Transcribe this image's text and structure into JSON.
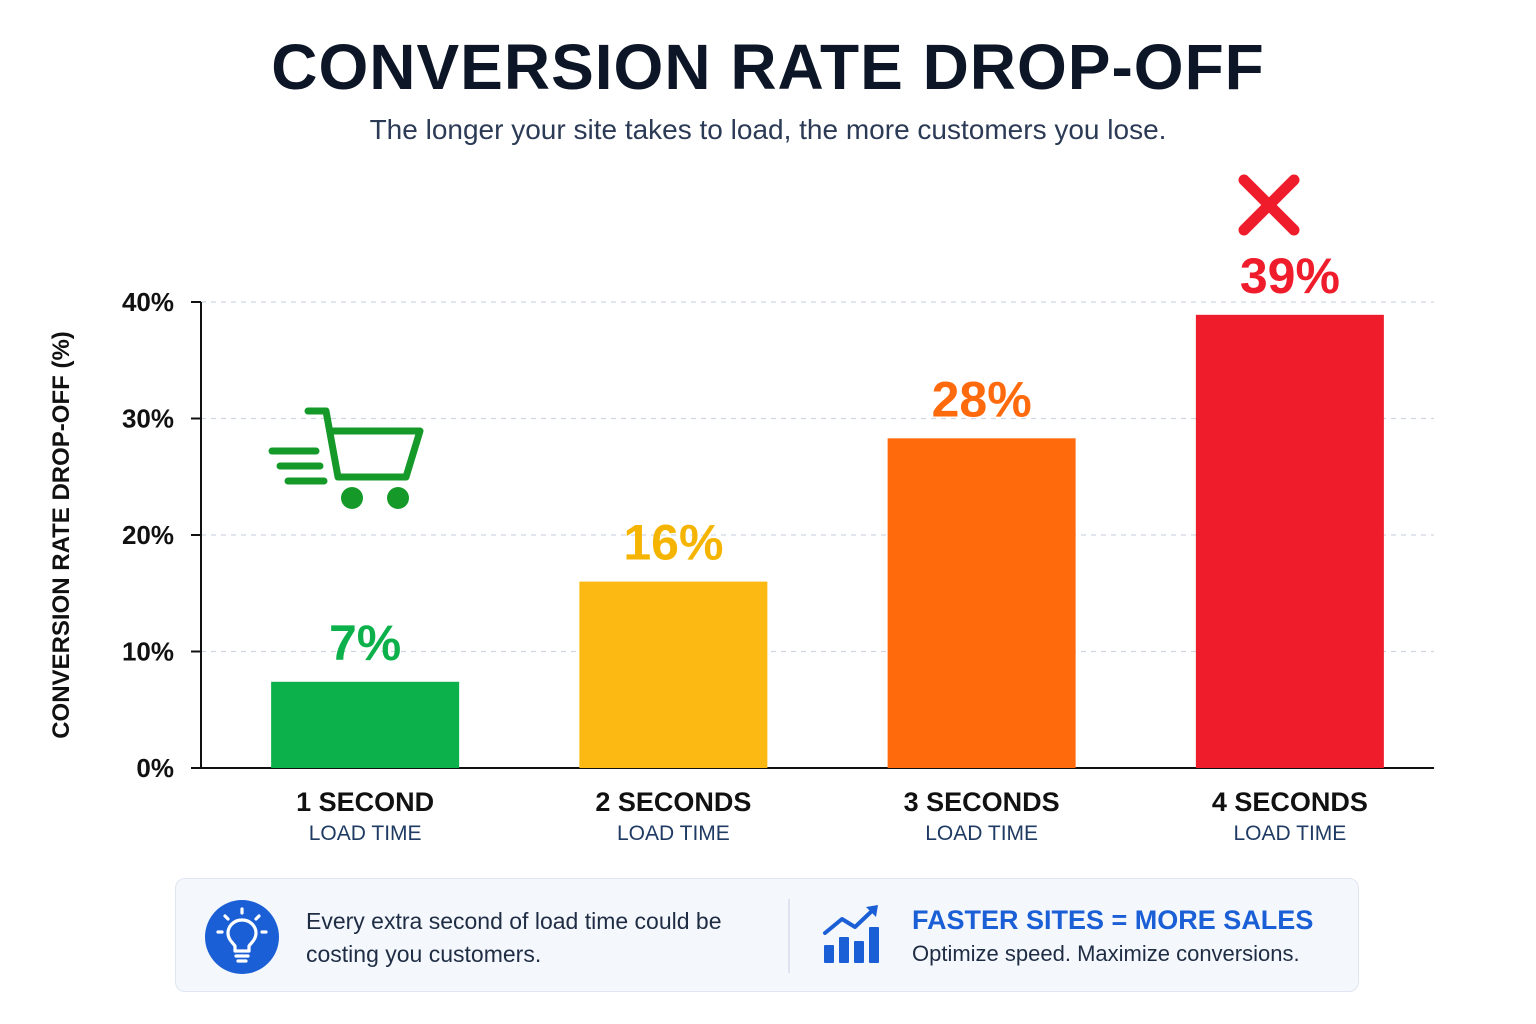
{
  "header": {
    "title": "CONVERSION RATE DROP-OFF",
    "subtitle": "The longer your site takes to load, the more customers you lose."
  },
  "chart_data": {
    "type": "bar",
    "categories": [
      "1 SECOND",
      "2 SECONDS",
      "3 SECONDS",
      "4 SECONDS"
    ],
    "category_sublabels": [
      "LOAD TIME",
      "LOAD TIME",
      "LOAD TIME",
      "LOAD TIME"
    ],
    "values": [
      7.4,
      16,
      28.3,
      38.9
    ],
    "data_labels": [
      "7%",
      "16%",
      "28%",
      "39%"
    ],
    "bar_colors": [
      "#0db14b",
      "#fdb913",
      "#ff6a0d",
      "#ef1c2c"
    ],
    "ylabel": "CONVERSION RATE DROP-OFF (%)",
    "ylim": [
      0,
      40
    ],
    "yticks": [
      0,
      10,
      20,
      30,
      40
    ],
    "ytick_labels": [
      "0%",
      "10%",
      "20%",
      "30%",
      "40%"
    ],
    "grid": true,
    "annotations": [
      {
        "icon": "shopping-cart-icon",
        "near": "1 SECOND",
        "color": "#159a2a"
      },
      {
        "icon": "x-mark-icon",
        "near": "4 SECONDS",
        "color": "#ef1c2c"
      }
    ]
  },
  "footer": {
    "tip_icon": "lightbulb-icon",
    "tip_text": "Every extra second of load time could be costing you customers.",
    "cta_icon": "growth-chart-icon",
    "cta_title": "FASTER SITES = MORE SALES",
    "cta_subtitle": "Optimize speed. Maximize conversions.",
    "accent_color": "#1a5fd6"
  }
}
